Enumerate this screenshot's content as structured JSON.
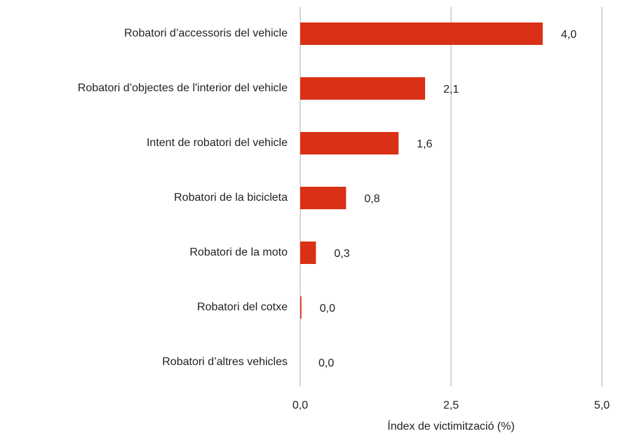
{
  "chart_data": {
    "type": "hbar",
    "categories": [
      "Robatori d’accessoris del vehicle",
      "Robatori d’objectes de l'interior del vehicle",
      "Intent de robatori del vehicle",
      "Robatori de la bicicleta",
      "Robatori de la moto",
      "Robatori del cotxe",
      "Robatori d’altres vehicles"
    ],
    "values": [
      4.02,
      2.07,
      1.63,
      0.76,
      0.26,
      0.02,
      0
    ],
    "value_labels": [
      "4,0",
      "2,1",
      "1,6",
      "0,8",
      "0,3",
      "0,0",
      "0,0"
    ],
    "color": "#d93016",
    "xlabel": "Índex de victimització (%)",
    "xlim": [
      0,
      5
    ],
    "xticks": [
      {
        "value": 0,
        "label": "0,0"
      },
      {
        "value": 2.5,
        "label": "2,5"
      },
      {
        "value": 5,
        "label": "5,0"
      }
    ],
    "grid": true
  }
}
